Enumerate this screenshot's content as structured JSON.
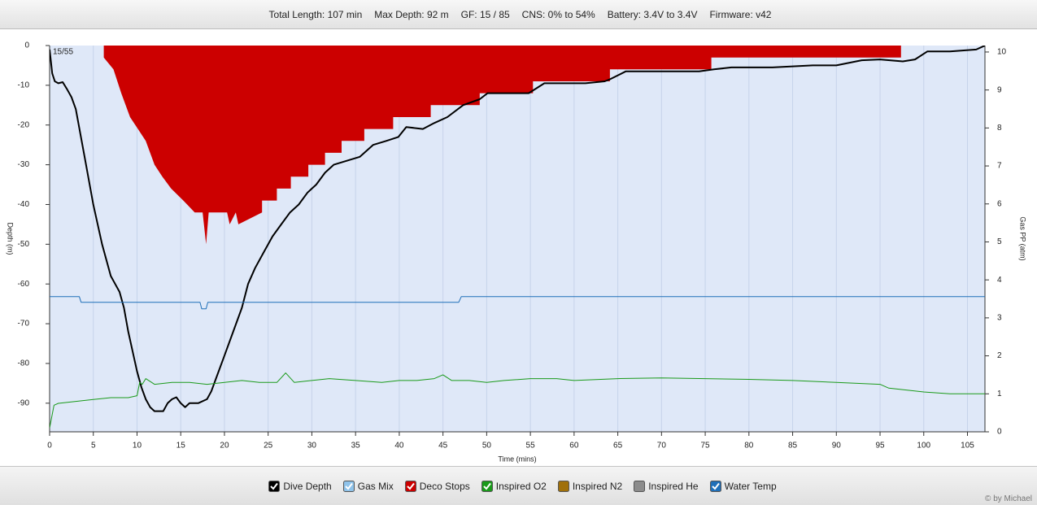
{
  "header": {
    "items": [
      "Total Length: 107 min",
      "Max Depth: 92 m",
      "GF: 15 / 85",
      "CNS: 0% to 54%",
      "Battery: 3.4V to 3.4V",
      "Firmware: v42"
    ]
  },
  "chart_data": {
    "type": "line",
    "xlabel": "Time (mins)",
    "ylabel": "Depth (m)",
    "y2label": "Gas PP (atm)",
    "annotation": "15/55",
    "xlim": [
      0,
      107
    ],
    "xticks": [
      0,
      5,
      10,
      15,
      20,
      25,
      30,
      35,
      40,
      45,
      50,
      55,
      60,
      65,
      70,
      75,
      80,
      85,
      90,
      95,
      100,
      105
    ],
    "ylim": [
      -97.2,
      0
    ],
    "yticks": [
      0,
      -10,
      -20,
      -30,
      -40,
      -50,
      -60,
      -70,
      -80,
      -90
    ],
    "y2lim": [
      0,
      10.17
    ],
    "y2ticks": [
      0,
      1,
      2,
      3,
      4,
      5,
      6,
      7,
      8,
      9,
      10
    ],
    "grid": true,
    "series": [
      {
        "name": "Dive Depth",
        "color": "#000000",
        "checked": true,
        "x": [
          0,
          0.3,
          0.6,
          1,
          1.5,
          2,
          2.5,
          3,
          4,
          5,
          6,
          7,
          7.5,
          8,
          8.5,
          9,
          9.5,
          10,
          10.5,
          11,
          11.5,
          12,
          12.5,
          13,
          13.5,
          14,
          14.5,
          15,
          15.5,
          16,
          17,
          18,
          18.5,
          19,
          20,
          21,
          22,
          22.7,
          23.5,
          24.5,
          25.5,
          26.5,
          27.5,
          28.5,
          29.5,
          30.5,
          31.5,
          32.5,
          34,
          35.5,
          37,
          38.5,
          39.9,
          40.8,
          42.7,
          44,
          45.5,
          47.3,
          49.2,
          50.1,
          52,
          54.8,
          56.6,
          58,
          61.3,
          63.5,
          64.1,
          65.9,
          70,
          74.3,
          76,
          78,
          82.7,
          87.3,
          90,
          92.9,
          95,
          97.6,
          99,
          100.4,
          103,
          106,
          107
        ],
        "values": [
          -1,
          -7,
          -9,
          -9.5,
          -9.2,
          -11,
          -13,
          -16,
          -28,
          -40,
          -50,
          -58,
          -60,
          -62,
          -66,
          -72,
          -77,
          -82,
          -86,
          -89,
          -91,
          -92,
          -92,
          -92,
          -90,
          -89,
          -88.5,
          -90,
          -91,
          -90,
          -90,
          -89,
          -87,
          -84,
          -78,
          -72,
          -66,
          -60,
          -56,
          -52,
          -48,
          -45,
          -42,
          -40,
          -37,
          -35,
          -32,
          -30,
          -29,
          -28,
          -25,
          -24,
          -23,
          -20.5,
          -21,
          -19.5,
          -18,
          -15,
          -13.5,
          -12,
          -12,
          -12,
          -9.5,
          -9.5,
          -9.5,
          -9,
          -8.5,
          -6.5,
          -6.5,
          -6.5,
          -6,
          -5.5,
          -5.5,
          -5,
          -5,
          -3.7,
          -3.5,
          -4,
          -3.5,
          -1.5,
          -1.5,
          -1,
          0
        ]
      },
      {
        "name": "Gas Mix",
        "color": "#8fc3ea",
        "checked": true
      },
      {
        "name": "Deco Stops",
        "color": "#cc0000",
        "checked": true,
        "fill": true,
        "x": [
          6.2,
          6.2,
          7.3,
          8.2,
          9.2,
          10.1,
          11,
          12,
          12.9,
          13.9,
          15.3,
          16.6,
          17.5,
          17.9,
          18.2,
          20.3,
          20.6,
          21.3,
          21.6,
          24.3,
          24.3,
          26,
          26,
          27.6,
          27.6,
          29.6,
          29.6,
          31.5,
          31.5,
          33.4,
          33.4,
          36,
          36,
          39.3,
          39.3,
          43.6,
          43.6,
          49.2,
          49.2,
          55.3,
          55.3,
          64.1,
          64.1,
          75.7,
          75.7,
          97.4,
          97.4
        ],
        "values": [
          0,
          -3,
          -6,
          -12,
          -18,
          -21,
          -24,
          -30,
          -33,
          -36,
          -39,
          -42,
          -42,
          -50,
          -42,
          -42,
          -45,
          -42,
          -45,
          -42,
          -39,
          -39,
          -36,
          -36,
          -33,
          -33,
          -30,
          -30,
          -27,
          -27,
          -24,
          -24,
          -21,
          -21,
          -18,
          -18,
          -15,
          -15,
          -12,
          -12,
          -9,
          -9,
          -6,
          -6,
          -3,
          -3,
          0
        ]
      },
      {
        "name": "Inspired O2",
        "color": "#1a9a1a",
        "checked": true,
        "axis": "y2",
        "x": [
          0,
          0.5,
          1,
          3,
          5,
          7,
          9,
          10,
          10.3,
          10.6,
          11,
          12,
          14,
          16,
          18,
          20,
          22,
          24,
          26,
          27,
          28,
          30,
          32,
          35,
          38,
          40,
          42,
          44,
          45,
          46,
          48,
          50,
          52,
          55,
          58,
          60,
          65,
          70,
          75,
          80,
          85,
          90,
          95,
          96,
          98,
          100,
          103,
          107
        ],
        "values": [
          0.1,
          0.7,
          0.75,
          0.8,
          0.85,
          0.9,
          0.9,
          0.95,
          1.3,
          1.25,
          1.4,
          1.25,
          1.3,
          1.3,
          1.25,
          1.3,
          1.35,
          1.3,
          1.3,
          1.55,
          1.3,
          1.35,
          1.4,
          1.35,
          1.3,
          1.35,
          1.35,
          1.4,
          1.5,
          1.35,
          1.35,
          1.3,
          1.35,
          1.4,
          1.4,
          1.35,
          1.4,
          1.42,
          1.4,
          1.38,
          1.35,
          1.3,
          1.25,
          1.15,
          1.1,
          1.05,
          1.0,
          1.0
        ]
      },
      {
        "name": "Inspired N2",
        "color": "#a0700a",
        "checked": false
      },
      {
        "name": "Inspired He",
        "color": "#8c8c8c",
        "checked": false
      },
      {
        "name": "Water Temp",
        "color": "#1f6fb8",
        "checked": true,
        "axis": "y2",
        "x": [
          0,
          3.4,
          3.6,
          17.2,
          17.4,
          17.9,
          18.1,
          46.8,
          47.1,
          107
        ],
        "values": [
          3.56,
          3.56,
          3.41,
          3.41,
          3.24,
          3.24,
          3.41,
          3.41,
          3.56,
          3.56
        ]
      }
    ]
  },
  "footer": {
    "credit": "© by Michael"
  }
}
